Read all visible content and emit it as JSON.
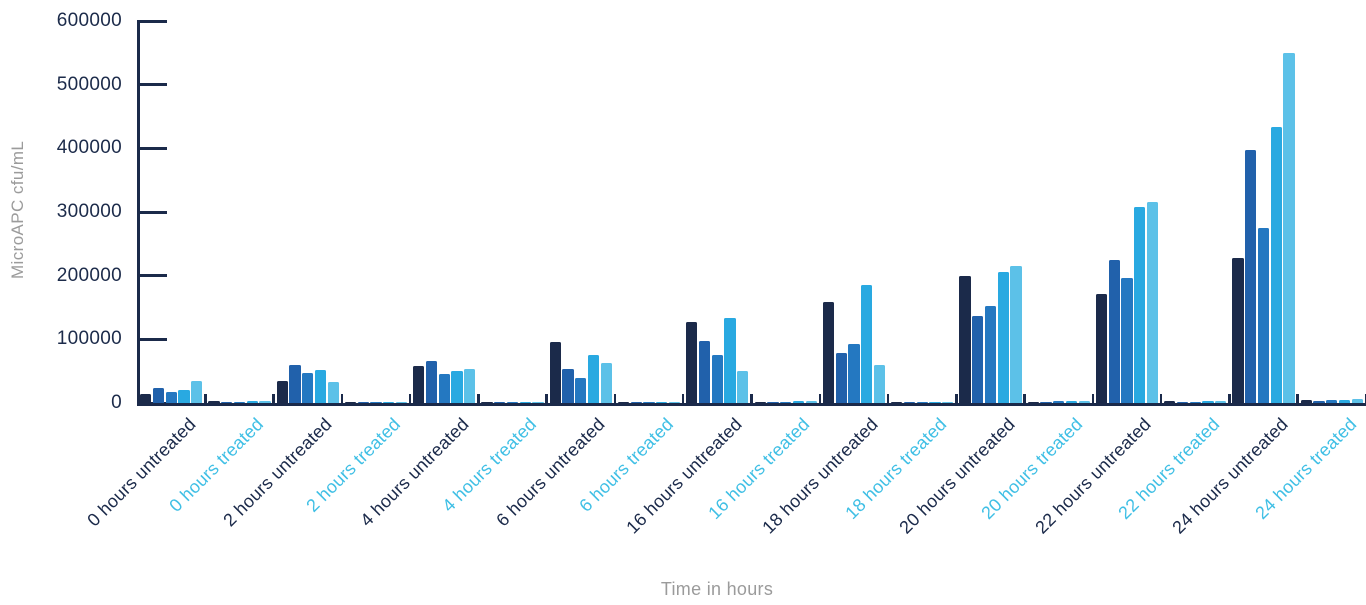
{
  "chart_data": {
    "type": "bar",
    "title": "",
    "ylabel": "MicroAPC cfu/mL",
    "xlabel": "Time in hours",
    "ylim": [
      0,
      600000
    ],
    "yticks": [
      0,
      100000,
      200000,
      300000,
      400000,
      500000,
      600000
    ],
    "grid": false,
    "legend": "none",
    "bars_per_group": 5,
    "series_colors": [
      "#1b2a4a",
      "#2161ab",
      "#2478c1",
      "#29a9e1",
      "#5cc1e8"
    ],
    "label_colors": {
      "untreated": "#1b2a4a",
      "treated": "#3fbfe5"
    },
    "axis_color": "#1b2a4a",
    "muted_text_color": "#9b9b9b",
    "groups": [
      {
        "label": "0 hours untreated",
        "treated": false,
        "values": [
          14000,
          24000,
          17000,
          21000,
          34000
        ]
      },
      {
        "label": "0 hours treated",
        "treated": true,
        "values": [
          3000,
          2000,
          2000,
          2500,
          2500
        ]
      },
      {
        "label": "2 hours untreated",
        "treated": false,
        "values": [
          35000,
          60000,
          47000,
          52000,
          33000
        ]
      },
      {
        "label": "2 hours treated",
        "treated": true,
        "values": [
          1200,
          800,
          800,
          1000,
          1000
        ]
      },
      {
        "label": "4 hours untreated",
        "treated": false,
        "values": [
          58000,
          66000,
          45000,
          50000,
          53000
        ]
      },
      {
        "label": "4 hours treated",
        "treated": true,
        "values": [
          600,
          500,
          500,
          800,
          800
        ]
      },
      {
        "label": "6 hours untreated",
        "treated": false,
        "values": [
          96000,
          53000,
          39000,
          76000,
          63000
        ]
      },
      {
        "label": "6 hours treated",
        "treated": true,
        "values": [
          800,
          600,
          800,
          1000,
          1000
        ]
      },
      {
        "label": "16 hours untreated",
        "treated": false,
        "values": [
          128000,
          98000,
          75000,
          134000,
          50000
        ]
      },
      {
        "label": "16 hours treated",
        "treated": true,
        "values": [
          1000,
          800,
          1500,
          2500,
          2500
        ]
      },
      {
        "label": "18 hours untreated",
        "treated": false,
        "values": [
          159000,
          78000,
          93000,
          186000,
          59000
        ]
      },
      {
        "label": "18 hours treated",
        "treated": true,
        "values": [
          1200,
          1000,
          1500,
          2000,
          2000
        ]
      },
      {
        "label": "20 hours untreated",
        "treated": false,
        "values": [
          200000,
          136000,
          153000,
          205000,
          215000
        ]
      },
      {
        "label": "20 hours treated",
        "treated": true,
        "values": [
          2000,
          1500,
          2500,
          2500,
          3000
        ]
      },
      {
        "label": "22 hours untreated",
        "treated": false,
        "values": [
          172000,
          225000,
          197000,
          308000,
          316000
        ]
      },
      {
        "label": "22 hours treated",
        "treated": true,
        "values": [
          3500,
          1500,
          2000,
          3000,
          3500
        ]
      },
      {
        "label": "24 hours untreated",
        "treated": false,
        "values": [
          228000,
          397000,
          275000,
          434000,
          550000
        ]
      },
      {
        "label": "24 hours treated",
        "treated": true,
        "values": [
          4000,
          3000,
          4000,
          5000,
          7000
        ]
      }
    ]
  }
}
